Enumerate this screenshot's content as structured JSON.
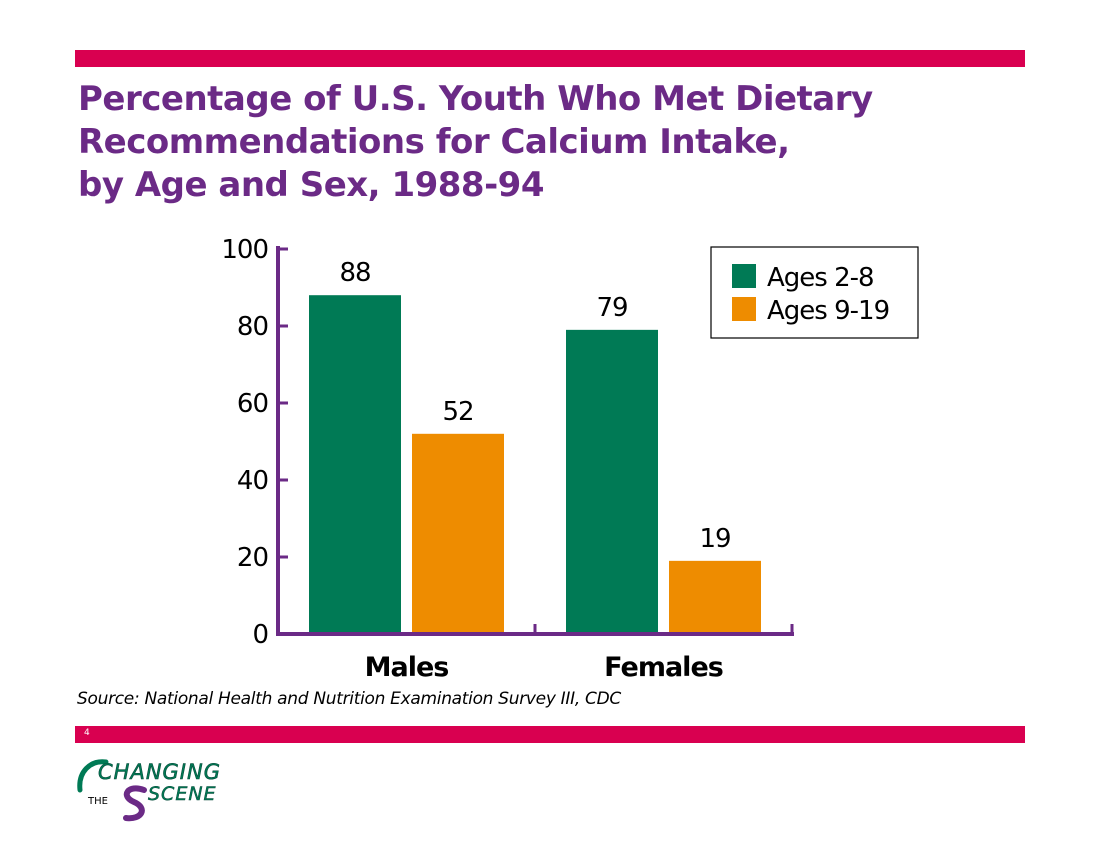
{
  "slide": {
    "title_lines": [
      "Percentage of U.S. Youth Who Met Dietary",
      "Recommendations for Calcium Intake,",
      "by Age and Sex, 1988-94"
    ],
    "source": "Source: National Health and Nutrition Examination Survey III, CDC",
    "page_number": "4",
    "logo": {
      "word_changing": "CHANGING",
      "word_the": "THE",
      "word_scene": "SCENE"
    }
  },
  "colors": {
    "band": "#d90050",
    "title": "#6b2a86",
    "axis": "#6b2a86",
    "series_1": "#007a55",
    "series_2": "#ee8c00"
  },
  "chart_data": {
    "type": "bar",
    "title": "Percentage of U.S. Youth Who Met Dietary Recommendations for Calcium Intake, by Age and Sex, 1988-94",
    "categories": [
      "Males",
      "Females"
    ],
    "series": [
      {
        "name": "Ages 2-8",
        "values": [
          88,
          79
        ],
        "color": "#007a55"
      },
      {
        "name": "Ages 9-19",
        "values": [
          52,
          19
        ],
        "color": "#ee8c00"
      }
    ],
    "xlabel": "",
    "ylabel": "",
    "ylim": [
      0,
      100
    ],
    "yticks": [
      0,
      20,
      40,
      60,
      80,
      100
    ],
    "data_labels": true,
    "grid": false,
    "legend_position": "top-right"
  }
}
